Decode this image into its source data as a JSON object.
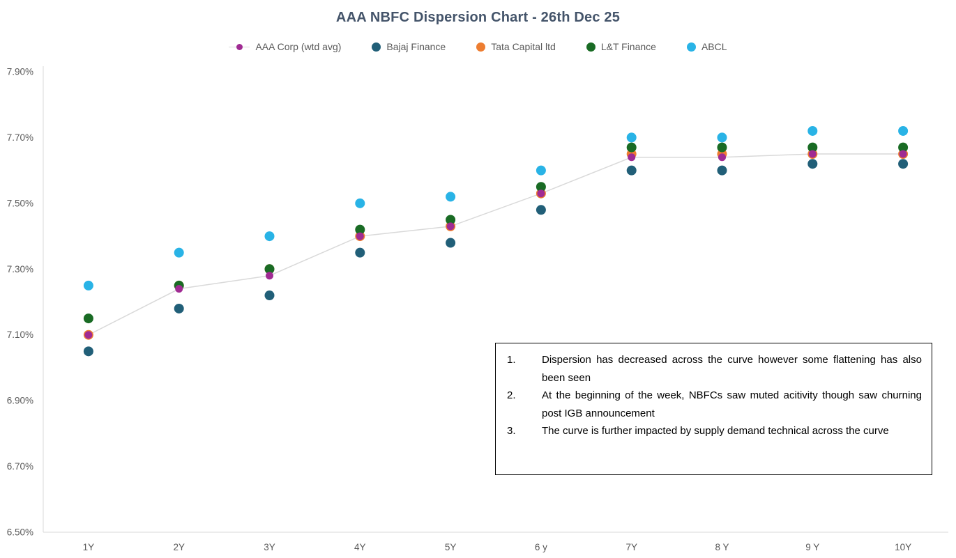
{
  "title": "AAA NBFC Dispersion Chart - 26th Dec 25",
  "chart_data": {
    "type": "scatter",
    "title": "AAA NBFC Dispersion Chart - 26th Dec 25",
    "categories": [
      "1Y",
      "2Y",
      "3Y",
      "4Y",
      "5Y",
      "6 y",
      "7Y",
      "8 Y",
      "9 Y",
      "10Y"
    ],
    "series": [
      {
        "name": "AAA Corp (wtd avg)",
        "color": "#A02B93",
        "marker_radius": 5.5,
        "connected_line": true,
        "line_color": "#D9D9D9",
        "values": [
          7.1,
          7.24,
          7.28,
          7.4,
          7.43,
          7.53,
          7.64,
          7.64,
          7.65,
          7.65
        ]
      },
      {
        "name": "Bajaj Finance",
        "color": "#215F78",
        "marker_radius": 7,
        "connected_line": false,
        "values": [
          7.05,
          7.18,
          7.22,
          7.35,
          7.38,
          7.48,
          7.6,
          7.6,
          7.62,
          7.62
        ]
      },
      {
        "name": "Tata Capital ltd",
        "color": "#ED7D31",
        "marker_radius": 7,
        "connected_line": false,
        "values": [
          7.1,
          7.25,
          7.3,
          7.4,
          7.43,
          7.53,
          7.65,
          7.65,
          7.65,
          7.65
        ]
      },
      {
        "name": "L&T Finance",
        "color": "#196B24",
        "marker_radius": 7,
        "connected_line": false,
        "values": [
          7.15,
          7.25,
          7.3,
          7.42,
          7.45,
          7.55,
          7.67,
          7.67,
          7.67,
          7.67
        ]
      },
      {
        "name": "ABCL",
        "color": "#29B3E6",
        "marker_radius": 7,
        "connected_line": false,
        "values": [
          7.25,
          7.35,
          7.4,
          7.5,
          7.52,
          7.6,
          7.7,
          7.7,
          7.72,
          7.72
        ]
      }
    ],
    "ylim": [
      6.5,
      7.9
    ],
    "ytick_values": [
      6.5,
      6.7,
      6.9,
      7.1,
      7.3,
      7.5,
      7.7,
      7.9
    ],
    "ytick_labels": [
      "6.50%",
      "6.70%",
      "6.90%",
      "7.10%",
      "7.30%",
      "7.50%",
      "7.70%",
      "7.90%"
    ],
    "xlabel": "",
    "ylabel": "",
    "grid": false,
    "legend_position": "top",
    "axis_color": "#D9D9D9",
    "tick_label_color": "#595959"
  },
  "annotation_box": {
    "items": [
      {
        "num": "1.",
        "text": "Dispersion has decreased across the curve however some flattening has also been seen"
      },
      {
        "num": "2.",
        "text": "At the beginning of the week, NBFCs saw muted acitivity though saw churning post IGB announcement"
      },
      {
        "num": "3.",
        "text": "The curve is further impacted by supply demand technical across the curve"
      }
    ]
  }
}
